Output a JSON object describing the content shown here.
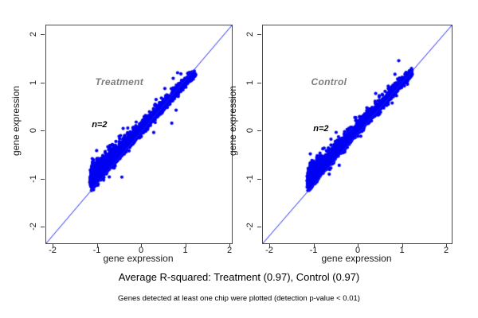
{
  "figure": {
    "background": "#ffffff",
    "box_color": "#4a4a4a"
  },
  "footer": {
    "line1": "Average R-squared: Treatment (0.97), Control (0.97)",
    "line2": "Genes detected at least one chip were plotted (detection p-value < 0.01)"
  },
  "chart_data": [
    {
      "type": "scatter",
      "panel": "left",
      "annotation": "Treatment",
      "annotation_xy": [
        -0.49,
        0.99
      ],
      "n_label": "n=2",
      "n_label_xy": [
        -0.94,
        0.1
      ],
      "xlabel": "gene expression",
      "ylabel": "gene expression",
      "xticks": [
        -2,
        -1,
        0,
        1,
        2
      ],
      "yticks": [
        -2,
        -1,
        0,
        1,
        2
      ],
      "xtick_labels": [
        "-2",
        "-1",
        "0",
        "1",
        "2"
      ],
      "ytick_labels": [
        "-2",
        "-1",
        "0",
        "1",
        "2"
      ],
      "xlim": [
        -2.16,
        2.04
      ],
      "ylim": [
        -2.33,
        2.2
      ],
      "r_squared": 0.97,
      "identity_line": true,
      "line_color": "#1a1aff",
      "point_color": "#0000f2",
      "point_radius": 2.1,
      "cloud": {
        "seed": 11,
        "n": 3400,
        "t_min": -1.13,
        "t_range": 2.33,
        "t_power": 2.0,
        "spread_base": 0.17,
        "spread_slope": 0.115,
        "below_frac": 0.1,
        "x_jitter": 0.018,
        "outliers": 26
      }
    },
    {
      "type": "scatter",
      "panel": "right",
      "annotation": "Control",
      "annotation_xy": [
        -0.65,
        0.99
      ],
      "n_label": "n=2",
      "n_label_xy": [
        -0.83,
        0.02
      ],
      "xlabel": "gene expression",
      "ylabel": "gene expression",
      "xticks": [
        -2,
        -1,
        0,
        1,
        2
      ],
      "yticks": [
        -2,
        -1,
        0,
        1,
        2
      ],
      "xtick_labels": [
        "-2",
        "-1",
        "0",
        "1",
        "2"
      ],
      "ytick_labels": [
        "-2",
        "-1",
        "0",
        "1",
        "2"
      ],
      "xlim": [
        -2.16,
        2.0
      ],
      "ylim": [
        -2.33,
        2.2
      ],
      "r_squared": 0.97,
      "identity_line": true,
      "line_color": "#1a1aff",
      "point_color": "#0000f2",
      "point_radius": 2.1,
      "cloud": {
        "seed": 77,
        "n": 3400,
        "t_min": -1.12,
        "t_range": 2.32,
        "t_power": 2.0,
        "spread_base": 0.17,
        "spread_slope": 0.115,
        "below_frac": 0.1,
        "x_jitter": 0.018,
        "outliers": 26
      }
    }
  ]
}
